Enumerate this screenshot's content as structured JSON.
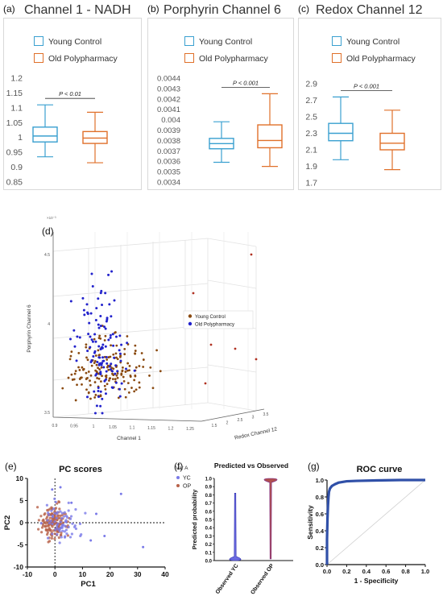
{
  "colors": {
    "young": "#3aa0d0",
    "old": "#e0702a",
    "yc_scatter": "#2222cc",
    "op_scatter": "#8a4a10",
    "op_pc": "#b8624a",
    "yc_pc": "#7a7ae8",
    "roc": "#3050a8"
  },
  "legend": {
    "young": "Young Control",
    "old": "Old Polypharmacy"
  },
  "chart_data": [
    {
      "panel": "(a)",
      "type": "box",
      "title": "Channel 1 - NADH",
      "annotation": "P < 0.01",
      "ylim": [
        0.85,
        1.2
      ],
      "yticks": [
        "1.2",
        "1.15",
        "1.1",
        "1.05",
        "1",
        "0.95",
        "0.9",
        "0.85"
      ],
      "series": [
        {
          "name": "Young Control",
          "min": 0.935,
          "q1": 0.985,
          "median": 1.005,
          "q3": 1.035,
          "max": 1.11
        },
        {
          "name": "Old Polypharmacy",
          "min": 0.915,
          "q1": 0.98,
          "median": 0.998,
          "q3": 1.02,
          "max": 1.085
        }
      ]
    },
    {
      "panel": "(b)",
      "type": "box",
      "title": "Porphyrin Channel 6",
      "annotation": "P < 0.001",
      "ylim": [
        0.0034,
        0.0044
      ],
      "yticks": [
        "0.0044",
        "0.0043",
        "0.0042",
        "0.0041",
        "0.004",
        "0.0039",
        "0.0038",
        "0.0037",
        "0.0036",
        "0.0035",
        "0.0034"
      ],
      "series": [
        {
          "name": "Young Control",
          "min": 0.00359,
          "q1": 0.00372,
          "median": 0.00377,
          "q3": 0.00382,
          "max": 0.00398
        },
        {
          "name": "Old Polypharmacy",
          "min": 0.00355,
          "q1": 0.00373,
          "median": 0.0038,
          "q3": 0.00395,
          "max": 0.00425
        }
      ]
    },
    {
      "panel": "(c)",
      "type": "box",
      "title": "Redox Channel 12",
      "annotation": "P < 0.001",
      "ylim": [
        1.7,
        2.9
      ],
      "yticks": [
        "2.9",
        "2.7",
        "2.5",
        "2.3",
        "2.1",
        "1.9",
        "1.7"
      ],
      "series": [
        {
          "name": "Young Control",
          "min": 1.98,
          "q1": 2.21,
          "median": 2.3,
          "q3": 2.42,
          "max": 2.74
        },
        {
          "name": "Old Polypharmacy",
          "min": 1.86,
          "q1": 2.1,
          "median": 2.18,
          "q3": 2.3,
          "max": 2.58
        }
      ]
    },
    {
      "panel": "(d)",
      "type": "scatter",
      "xlabel": "Channel 1",
      "ylabel": "Porphyrin Channel 6",
      "zlabel": "Redox Channel 12",
      "y_exponent": "×10⁻³",
      "yticks": [
        "4.5",
        "4",
        "3.5"
      ],
      "xticks": [
        "0.9",
        "0.95",
        "1",
        "1.05",
        "1.1",
        "1.15",
        "1.2",
        "1.25"
      ],
      "zticks": [
        "1.5",
        "2",
        "2.5",
        "3",
        "3.5"
      ],
      "legend": [
        "Young Control",
        "Old Polypharmacy"
      ]
    },
    {
      "panel": "(e)",
      "type": "scatter",
      "title": "PC scores",
      "xlabel": "PC1",
      "ylabel": "PC2",
      "xlim": [
        -10,
        40
      ],
      "ylim": [
        -10,
        10
      ],
      "xticks": [
        "-10",
        "0",
        "10",
        "20",
        "30",
        "40"
      ],
      "yticks": [
        "10",
        "5",
        "0",
        "-5",
        "-10"
      ],
      "legend_title": "Var A",
      "legend": [
        "YC",
        "OP"
      ]
    },
    {
      "panel": "(f)",
      "type": "violin",
      "title": "Predicted vs Observed",
      "ylabel": "Predicted probability",
      "ylim": [
        0,
        1
      ],
      "yticks": [
        "1.0",
        "0.9",
        "0.8",
        "0.7",
        "0.6",
        "0.5",
        "0.4",
        "0.3",
        "0.2",
        "0.1",
        "0.0"
      ],
      "categories": [
        "Observed YC",
        "Observed OP"
      ]
    },
    {
      "panel": "(g)",
      "type": "line",
      "title": "ROC curve",
      "xlabel": "1 - Specificity",
      "ylabel": "Sensitivity",
      "xlim": [
        0,
        1
      ],
      "ylim": [
        0,
        1
      ],
      "xticks": [
        "0.0",
        "0.2",
        "0.4",
        "0.6",
        "0.8",
        "1.0"
      ],
      "yticks": [
        "1.0",
        "0.8",
        "0.6",
        "0.4",
        "0.2",
        "0.0"
      ],
      "x": [
        0,
        0,
        0.005,
        0.01,
        0.015,
        0.02,
        0.03,
        0.05,
        0.08,
        0.12,
        0.2,
        0.3,
        0.5,
        0.75,
        1.0
      ],
      "y": [
        0,
        0.3,
        0.55,
        0.7,
        0.8,
        0.86,
        0.9,
        0.93,
        0.95,
        0.97,
        0.985,
        0.99,
        0.995,
        1.0,
        1.0
      ]
    }
  ]
}
